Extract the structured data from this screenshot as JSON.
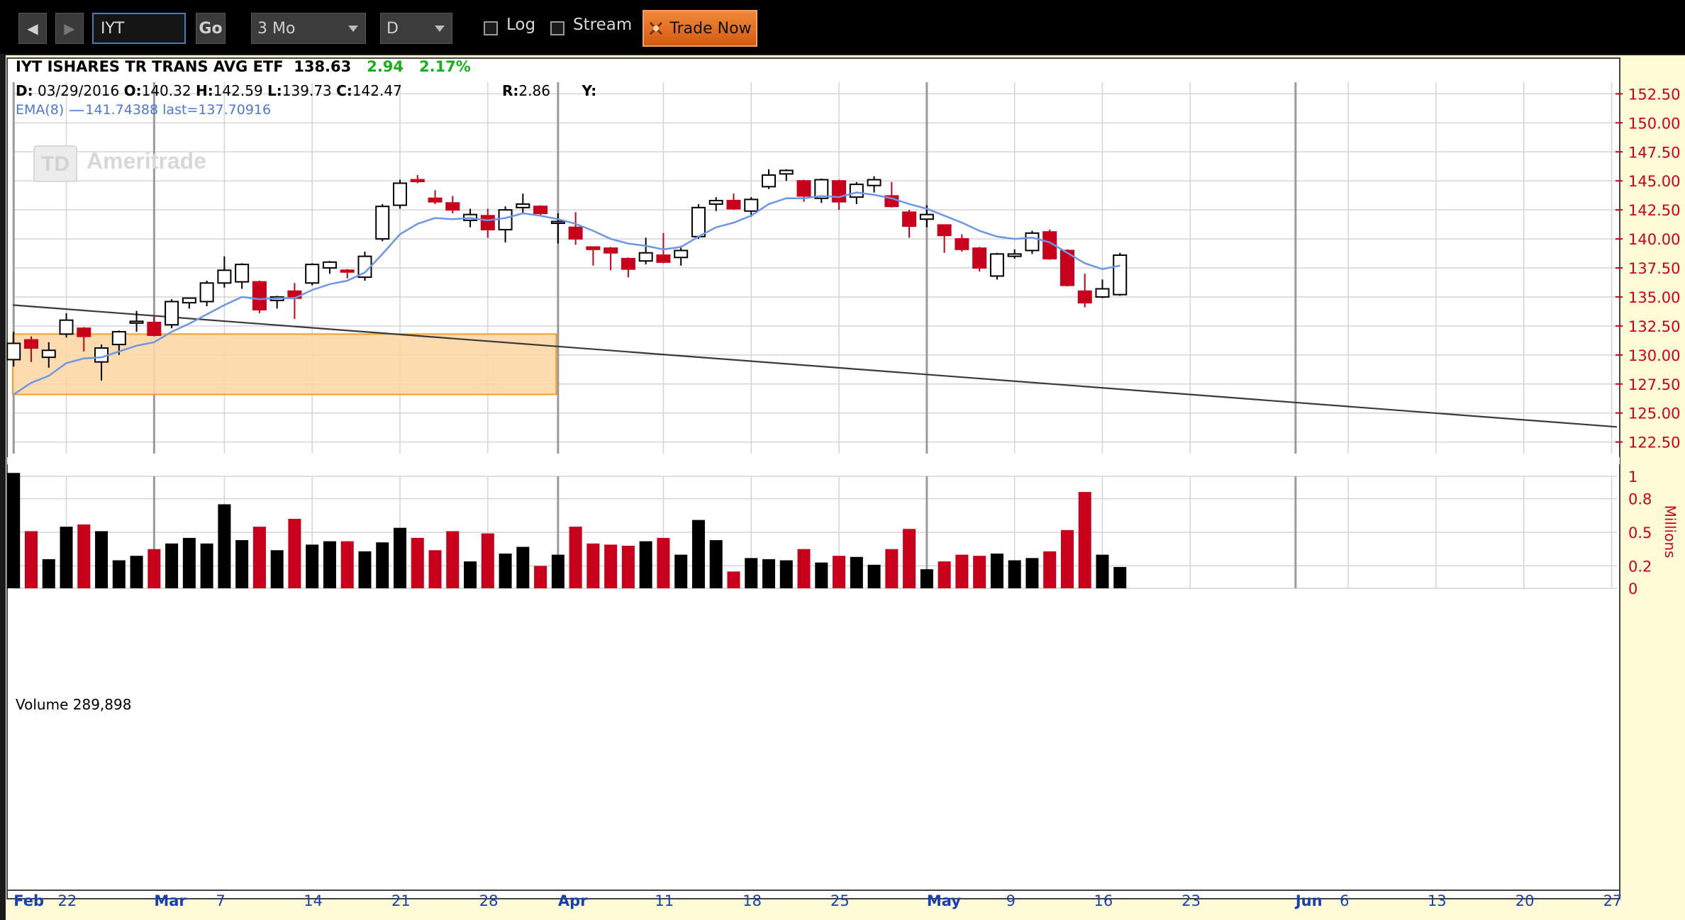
{
  "toolbar": {
    "symbol": "IYT",
    "go_label": "Go",
    "period": "3 Mo",
    "interval": "D",
    "log_label": "Log",
    "stream_label": "Stream",
    "trade_now_label": "Trade Now"
  },
  "header": {
    "title": "IYT ISHARES TR TRANS AVG ETF",
    "last": "138.63",
    "change": "2.94",
    "change_pct": "2.17%",
    "d_label": "D:",
    "date": "03/29/2016",
    "o_label": "O:",
    "open": "140.32",
    "h_label": "H:",
    "high": "142.59",
    "l_label": "L:",
    "low": "139.73",
    "c_label": "C:",
    "close": "142.47",
    "r_label": "R:",
    "r_value": "2.86",
    "y_label": "Y:",
    "ema_label": "EMA(8)",
    "ema_value": "141.74388",
    "ema_last": "last=137.70916"
  },
  "watermark": "Ameritrade",
  "watermark_logo": "TD",
  "volume_label": "Volume 289,898",
  "colors": {
    "up": "#000000",
    "down": "#c8001b",
    "ema": "#6e96e6",
    "box_fill": "#fcd8a6",
    "box_stroke": "#f0a030",
    "axis_text": "#d0001a",
    "x_text": "#1840b0",
    "positive": "#18b018"
  },
  "chart_data": [
    {
      "type": "candlestick",
      "ylim": [
        121.5,
        153.5
      ],
      "y_ticks": [
        "152.50",
        "150.00",
        "147.50",
        "145.00",
        "142.50",
        "140.00",
        "137.50",
        "135.00",
        "132.50",
        "130.00",
        "127.50",
        "125.00",
        "122.50"
      ],
      "x_ticks": [
        {
          "label": "Feb",
          "index": 0,
          "major": true
        },
        {
          "label": "22",
          "index": 3
        },
        {
          "label": "Mar",
          "index": 8,
          "major": true
        },
        {
          "label": "7",
          "index": 12
        },
        {
          "label": "14",
          "index": 17
        },
        {
          "label": "21",
          "index": 22
        },
        {
          "label": "28",
          "index": 27
        },
        {
          "label": "Apr",
          "index": 31,
          "major": true
        },
        {
          "label": "11",
          "index": 37
        },
        {
          "label": "18",
          "index": 42
        },
        {
          "label": "25",
          "index": 47
        },
        {
          "label": "May",
          "index": 52,
          "major": true
        },
        {
          "label": "9",
          "index": 57
        },
        {
          "label": "16",
          "index": 62
        },
        {
          "label": "23",
          "index": 67
        },
        {
          "label": "Jun",
          "index": 73,
          "major": true
        },
        {
          "label": "6",
          "index": 76
        },
        {
          "label": "13",
          "index": 81
        },
        {
          "label": "20",
          "index": 86
        },
        {
          "label": "27",
          "index": 91
        }
      ],
      "index_range": [
        -0.05,
        91.3
      ],
      "candles": [
        {
          "o": 129.6,
          "h": 132.0,
          "l": 129.0,
          "c": 131.0
        },
        {
          "o": 131.3,
          "h": 131.6,
          "l": 129.4,
          "c": 130.6
        },
        {
          "o": 129.8,
          "h": 131.1,
          "l": 128.9,
          "c": 130.4
        },
        {
          "o": 131.8,
          "h": 133.6,
          "l": 131.5,
          "c": 133.0
        },
        {
          "o": 132.3,
          "h": 132.4,
          "l": 130.3,
          "c": 131.6
        },
        {
          "o": 129.4,
          "h": 130.9,
          "l": 127.8,
          "c": 130.6
        },
        {
          "o": 130.9,
          "h": 132.1,
          "l": 130.0,
          "c": 132.0
        },
        {
          "o": 132.8,
          "h": 133.8,
          "l": 132.0,
          "c": 132.9
        },
        {
          "o": 132.8,
          "h": 133.3,
          "l": 131.6,
          "c": 131.7
        },
        {
          "o": 132.6,
          "h": 134.8,
          "l": 132.3,
          "c": 134.6
        },
        {
          "o": 134.5,
          "h": 134.9,
          "l": 134.0,
          "c": 134.9
        },
        {
          "o": 134.6,
          "h": 136.4,
          "l": 134.2,
          "c": 136.2
        },
        {
          "o": 136.2,
          "h": 138.5,
          "l": 135.8,
          "c": 137.3
        },
        {
          "o": 136.3,
          "h": 137.9,
          "l": 135.7,
          "c": 137.8
        },
        {
          "o": 136.3,
          "h": 136.4,
          "l": 133.6,
          "c": 133.9
        },
        {
          "o": 134.7,
          "h": 135.1,
          "l": 134.0,
          "c": 135.0
        },
        {
          "o": 135.5,
          "h": 136.2,
          "l": 133.1,
          "c": 134.9
        },
        {
          "o": 136.2,
          "h": 137.9,
          "l": 136.0,
          "c": 137.8
        },
        {
          "o": 137.5,
          "h": 138.1,
          "l": 137.0,
          "c": 138.0
        },
        {
          "o": 137.3,
          "h": 137.4,
          "l": 136.6,
          "c": 137.2
        },
        {
          "o": 136.7,
          "h": 138.9,
          "l": 136.4,
          "c": 138.5
        },
        {
          "o": 140.0,
          "h": 143.0,
          "l": 139.8,
          "c": 142.8
        },
        {
          "o": 142.9,
          "h": 145.1,
          "l": 142.6,
          "c": 144.8
        },
        {
          "o": 145.1,
          "h": 145.5,
          "l": 144.8,
          "c": 145.0
        },
        {
          "o": 143.5,
          "h": 144.2,
          "l": 143.0,
          "c": 143.2
        },
        {
          "o": 143.1,
          "h": 143.7,
          "l": 142.2,
          "c": 142.5
        },
        {
          "o": 141.6,
          "h": 142.6,
          "l": 141.0,
          "c": 142.1
        },
        {
          "o": 142.0,
          "h": 142.6,
          "l": 140.1,
          "c": 140.8
        },
        {
          "o": 140.8,
          "h": 142.8,
          "l": 139.7,
          "c": 142.5
        },
        {
          "o": 142.7,
          "h": 143.9,
          "l": 142.2,
          "c": 143.0
        },
        {
          "o": 142.8,
          "h": 142.9,
          "l": 142.0,
          "c": 142.2
        },
        {
          "o": 141.5,
          "h": 142.2,
          "l": 139.6,
          "c": 141.5
        },
        {
          "o": 141.0,
          "h": 142.3,
          "l": 139.5,
          "c": 140.0
        },
        {
          "o": 139.3,
          "h": 139.3,
          "l": 137.7,
          "c": 139.1
        },
        {
          "o": 139.2,
          "h": 139.3,
          "l": 137.3,
          "c": 138.8
        },
        {
          "o": 138.3,
          "h": 138.4,
          "l": 136.7,
          "c": 137.4
        },
        {
          "o": 138.1,
          "h": 140.1,
          "l": 137.8,
          "c": 138.8
        },
        {
          "o": 138.6,
          "h": 140.5,
          "l": 137.9,
          "c": 138.0
        },
        {
          "o": 138.4,
          "h": 139.4,
          "l": 137.7,
          "c": 139.0
        },
        {
          "o": 140.2,
          "h": 143.0,
          "l": 140.0,
          "c": 142.7
        },
        {
          "o": 143.0,
          "h": 143.6,
          "l": 142.4,
          "c": 143.3
        },
        {
          "o": 143.3,
          "h": 143.9,
          "l": 142.5,
          "c": 142.6
        },
        {
          "o": 142.4,
          "h": 143.6,
          "l": 141.9,
          "c": 143.4
        },
        {
          "o": 144.5,
          "h": 146.0,
          "l": 144.3,
          "c": 145.5
        },
        {
          "o": 145.6,
          "h": 146.0,
          "l": 145.0,
          "c": 145.9
        },
        {
          "o": 145.0,
          "h": 145.1,
          "l": 143.2,
          "c": 143.7
        },
        {
          "o": 143.5,
          "h": 145.2,
          "l": 143.1,
          "c": 145.1
        },
        {
          "o": 145.0,
          "h": 145.1,
          "l": 142.5,
          "c": 143.2
        },
        {
          "o": 143.6,
          "h": 144.9,
          "l": 143.0,
          "c": 144.7
        },
        {
          "o": 144.6,
          "h": 145.4,
          "l": 144.0,
          "c": 145.1
        },
        {
          "o": 143.7,
          "h": 144.9,
          "l": 142.7,
          "c": 142.8
        },
        {
          "o": 142.3,
          "h": 142.5,
          "l": 140.1,
          "c": 141.1
        },
        {
          "o": 141.7,
          "h": 142.9,
          "l": 141.0,
          "c": 142.1
        },
        {
          "o": 141.2,
          "h": 141.2,
          "l": 138.8,
          "c": 140.3
        },
        {
          "o": 140.0,
          "h": 140.4,
          "l": 138.9,
          "c": 139.1
        },
        {
          "o": 139.2,
          "h": 139.3,
          "l": 137.2,
          "c": 137.5
        },
        {
          "o": 136.8,
          "h": 138.8,
          "l": 136.5,
          "c": 138.7
        },
        {
          "o": 138.5,
          "h": 139.1,
          "l": 138.3,
          "c": 138.7
        },
        {
          "o": 139.0,
          "h": 140.7,
          "l": 138.7,
          "c": 140.5
        },
        {
          "o": 140.6,
          "h": 140.8,
          "l": 138.2,
          "c": 138.3
        },
        {
          "o": 139.0,
          "h": 139.1,
          "l": 135.9,
          "c": 136.0
        },
        {
          "o": 135.5,
          "h": 137.0,
          "l": 134.1,
          "c": 134.5
        },
        {
          "o": 135.0,
          "h": 136.5,
          "l": 134.9,
          "c": 135.7
        },
        {
          "o": 135.2,
          "h": 138.8,
          "l": 135.1,
          "c": 138.6
        }
      ],
      "ema": [
        126.6,
        127.6,
        128.2,
        129.3,
        129.7,
        129.8,
        130.3,
        130.8,
        131.1,
        132.0,
        132.7,
        133.5,
        134.3,
        135.0,
        134.8,
        134.9,
        134.9,
        135.6,
        136.1,
        136.4,
        137.1,
        138.7,
        140.4,
        141.3,
        141.8,
        141.7,
        141.8,
        141.6,
        141.8,
        142.2,
        142.0,
        141.7,
        141.3,
        140.7,
        140.0,
        139.6,
        139.4,
        139.1,
        139.3,
        140.2,
        141.0,
        141.4,
        142.0,
        143.0,
        143.5,
        143.5,
        143.7,
        143.6,
        144.0,
        143.8,
        143.5,
        143.0,
        142.6,
        142.0,
        141.4,
        140.7,
        140.2,
        140.0,
        140.1,
        139.7,
        138.8,
        137.9,
        137.4,
        137.7
      ],
      "trendline": {
        "from": {
          "index": -0.05,
          "price": 134.3
        },
        "to": {
          "index": 91.3,
          "price": 123.8
        }
      },
      "highlight_box": {
        "x_start": -0.05,
        "x_end": 30.9,
        "price_low": 126.6,
        "price_high": 131.8
      }
    },
    {
      "type": "bar",
      "name": "Volume",
      "unit": "Millions",
      "ylim": [
        0,
        1.0
      ],
      "y_ticks": [
        "1",
        "0.8",
        "0.5",
        "0.2",
        "0"
      ],
      "values": [
        1.03,
        0.51,
        0.26,
        0.55,
        0.57,
        0.51,
        0.25,
        0.29,
        0.35,
        0.4,
        0.45,
        0.4,
        0.75,
        0.43,
        0.55,
        0.34,
        0.62,
        0.39,
        0.42,
        0.42,
        0.33,
        0.41,
        0.54,
        0.45,
        0.34,
        0.51,
        0.24,
        0.49,
        0.31,
        0.37,
        0.2,
        0.3,
        0.55,
        0.4,
        0.39,
        0.38,
        0.42,
        0.45,
        0.3,
        0.61,
        0.43,
        0.15,
        0.27,
        0.26,
        0.25,
        0.35,
        0.23,
        0.29,
        0.28,
        0.21,
        0.35,
        0.53,
        0.17,
        0.24,
        0.3,
        0.29,
        0.31,
        0.25,
        0.27,
        0.33,
        0.52,
        0.86,
        0.3,
        0.19
      ]
    }
  ]
}
